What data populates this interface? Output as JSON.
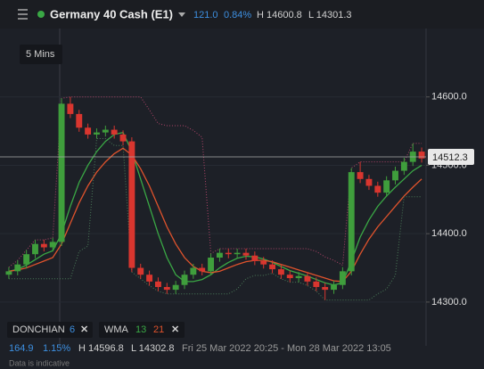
{
  "header": {
    "title": "Germany 40 Cash (E1)",
    "change": "121.0",
    "change_pct": "0.84%",
    "high": "H 14600.8",
    "low": "L 14301.3"
  },
  "timeframe": "5 Mins",
  "indicators": {
    "donchian": {
      "name": "DONCHIAN",
      "period": "6"
    },
    "wma": {
      "name": "WMA",
      "fast": "13",
      "slow": "21"
    }
  },
  "footer": {
    "change": "164.9",
    "change_pct": "1.15%",
    "high": "H 14596.8",
    "low": "L 14302.8",
    "range": "Fri 25 Mar 2022 20:25 - Mon 28 Mar 2022 13:05",
    "note": "Data is indicative"
  },
  "chart_data": {
    "type": "candlestick",
    "up_color": "#3f9e3c",
    "down_color": "#d9362f",
    "open": [
      14340,
      14345,
      14355,
      14370,
      14385,
      14380,
      14388,
      14590,
      14575,
      14555,
      14545,
      14548,
      14552,
      14545,
      14535,
      14350,
      14340,
      14330,
      14322,
      14318,
      14325,
      14340,
      14350,
      14345,
      14365,
      14372,
      14370,
      14372,
      14368,
      14360,
      14355,
      14348,
      14340,
      14335,
      14338,
      14330,
      14322,
      14318,
      14325,
      14345,
      14490,
      14480,
      14470,
      14460,
      14478,
      14492,
      14505,
      14520
    ],
    "high": [
      14351,
      14361,
      14376,
      14391,
      14391,
      14394,
      14598,
      14600,
      14581,
      14561,
      14554,
      14558,
      14558,
      14551,
      14541,
      14356,
      14346,
      14336,
      14328,
      14331,
      14346,
      14356,
      14356,
      14371,
      14378,
      14378,
      14378,
      14378,
      14374,
      14366,
      14361,
      14354,
      14346,
      14344,
      14344,
      14336,
      14328,
      14331,
      14351,
      14496,
      14505,
      14486,
      14476,
      14484,
      14498,
      14511,
      14532,
      14526
    ],
    "low": [
      14334,
      14339,
      14349,
      14364,
      14374,
      14374,
      14382,
      14569,
      14549,
      14539,
      14539,
      14542,
      14539,
      14529,
      14344,
      14334,
      14324,
      14316,
      14312,
      14312,
      14319,
      14334,
      14339,
      14339,
      14359,
      14364,
      14364,
      14362,
      14354,
      14349,
      14342,
      14334,
      14329,
      14329,
      14324,
      14316,
      14303,
      14312,
      14319,
      14339,
      14474,
      14464,
      14454,
      14454,
      14472,
      14486,
      14499,
      14504
    ],
    "close": [
      14345,
      14355,
      14370,
      14385,
      14380,
      14388,
      14590,
      14575,
      14555,
      14545,
      14548,
      14552,
      14545,
      14535,
      14350,
      14340,
      14330,
      14322,
      14318,
      14325,
      14340,
      14350,
      14345,
      14365,
      14372,
      14370,
      14372,
      14368,
      14360,
      14355,
      14348,
      14340,
      14335,
      14338,
      14330,
      14322,
      14318,
      14325,
      14345,
      14490,
      14480,
      14470,
      14460,
      14478,
      14492,
      14505,
      14520,
      14510
    ],
    "series": [
      {
        "color": "#3aa845",
        "style": "solid",
        "values": [
          14345,
          14348,
          14354,
          14362,
          14370,
          14375,
          14400,
          14440,
          14475,
          14500,
          14520,
          14535,
          14545,
          14548,
          14520,
          14480,
          14440,
          14400,
          14365,
          14340,
          14330,
          14330,
          14333,
          14340,
          14350,
          14358,
          14364,
          14367,
          14366,
          14363,
          14358,
          14352,
          14346,
          14342,
          14338,
          14333,
          14328,
          14325,
          14328,
          14360,
          14395,
          14420,
          14440,
          14455,
          14468,
          14480,
          14492,
          14500
        ]
      },
      {
        "color": "#e0532c",
        "style": "solid",
        "values": [
          14345,
          14347,
          14350,
          14355,
          14360,
          14365,
          14385,
          14415,
          14445,
          14470,
          14490,
          14505,
          14517,
          14525,
          14515,
          14495,
          14470,
          14440,
          14410,
          14385,
          14365,
          14352,
          14345,
          14343,
          14345,
          14350,
          14355,
          14359,
          14361,
          14361,
          14359,
          14355,
          14351,
          14347,
          14343,
          14339,
          14335,
          14331,
          14330,
          14345,
          14370,
          14392,
          14410,
          14425,
          14440,
          14455,
          14468,
          14480
        ]
      },
      {
        "color": "#b0456a",
        "style": "dotted",
        "values": [
          14351,
          14361,
          14376,
          14391,
          14391,
          14394,
          14598,
          14600,
          14600,
          14600,
          14600,
          14600,
          14600,
          14600,
          14600,
          14600,
          14581,
          14561,
          14558,
          14558,
          14558,
          14551,
          14541,
          14371,
          14378,
          14378,
          14378,
          14378,
          14378,
          14378,
          14378,
          14378,
          14378,
          14378,
          14378,
          14374,
          14366,
          14361,
          14354,
          14496,
          14505,
          14505,
          14505,
          14505,
          14505,
          14505,
          14532,
          14532
        ]
      },
      {
        "color": "#4a7a58",
        "style": "dotted",
        "values": [
          14334,
          14334,
          14334,
          14334,
          14334,
          14334,
          14334,
          14334,
          14374,
          14382,
          14539,
          14539,
          14529,
          14529,
          14344,
          14334,
          14324,
          14316,
          14312,
          14312,
          14312,
          14312,
          14312,
          14312,
          14312,
          14312,
          14319,
          14334,
          14339,
          14339,
          14342,
          14334,
          14329,
          14329,
          14324,
          14316,
          14303,
          14303,
          14303,
          14303,
          14303,
          14303,
          14312,
          14319,
          14339,
          14454,
          14454,
          14454
        ]
      }
    ],
    "ylim": [
      14236,
      14700
    ],
    "yticks": [
      {
        "value": 14300,
        "label": "14300.0"
      },
      {
        "value": 14400,
        "label": "14400.0"
      },
      {
        "value": 14500,
        "label": "14500.0"
      },
      {
        "value": 14600,
        "label": "14600.0"
      }
    ],
    "last_price": 14512.3
  }
}
